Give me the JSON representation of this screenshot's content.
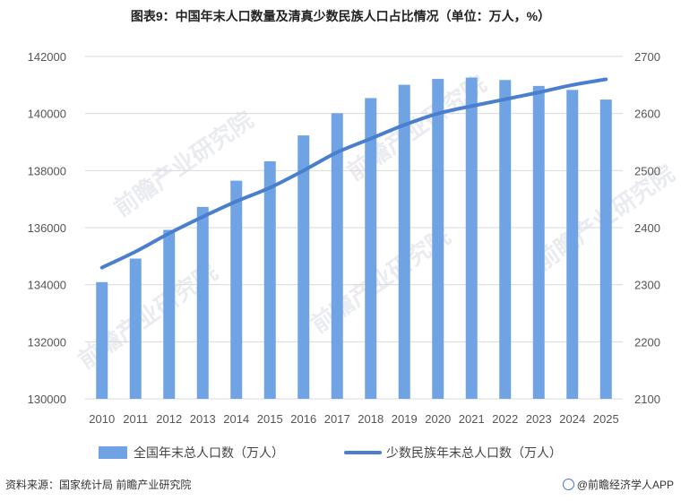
{
  "title": "图表9：中国年末人口数量及清真少数民族人口占比情况（单位：万人，%）",
  "source": "资料来源：国家统计局 前瞻产业研究院",
  "brand": "@前瞻经济学人APP",
  "watermark": "前瞻产业研究院",
  "chart_data": {
    "type": "bar+line",
    "categories": [
      "2010",
      "2011",
      "2012",
      "2013",
      "2014",
      "2015",
      "2016",
      "2017",
      "2018",
      "2019",
      "2020",
      "2021",
      "2022",
      "2023",
      "2024",
      "2025"
    ],
    "series": [
      {
        "name": "全国年末总人口数（万人）",
        "type": "bar",
        "axis": "left",
        "color": "#6fa3e3",
        "values": [
          134091,
          134916,
          135922,
          136726,
          137646,
          138326,
          139232,
          140011,
          140541,
          141008,
          141212,
          141260,
          141175,
          140967,
          140828,
          140489
        ]
      },
      {
        "name": "少数民族年末总人口数（万人）",
        "type": "line",
        "axis": "right",
        "color": "#4a7fcf",
        "values": [
          2330,
          2358,
          2390,
          2419,
          2446,
          2470,
          2500,
          2532,
          2556,
          2580,
          2600,
          2613,
          2625,
          2637,
          2650,
          2660
        ]
      }
    ],
    "y_left": {
      "min": 130000,
      "max": 142000,
      "ticks": [
        "130000",
        "132000",
        "134000",
        "136000",
        "138000",
        "140000",
        "142000"
      ]
    },
    "y_right": {
      "min": 2100,
      "max": 2700,
      "ticks": [
        "2100",
        "2200",
        "2300",
        "2400",
        "2500",
        "2600",
        "2700"
      ]
    },
    "grid": true,
    "legend_position": "bottom"
  }
}
